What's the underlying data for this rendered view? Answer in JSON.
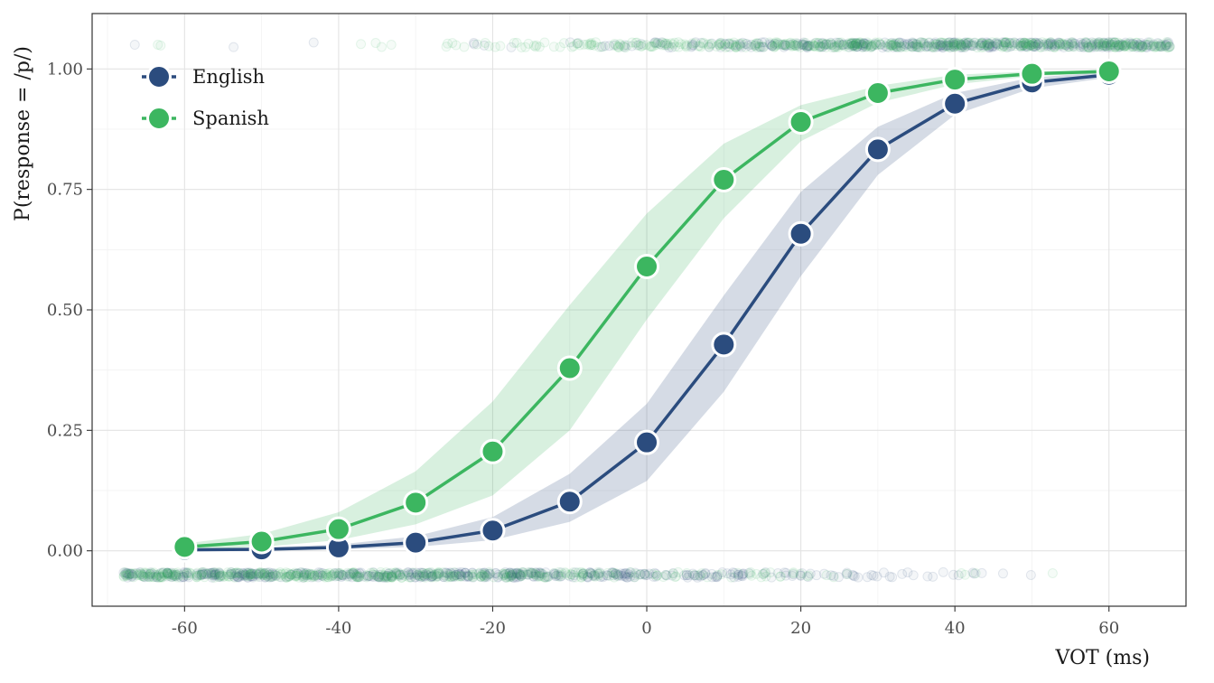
{
  "chart_data": {
    "type": "line",
    "xlabel": "VOT (ms)",
    "ylabel": "P(response = /p/)",
    "xlim": [
      -72,
      70
    ],
    "ylim": [
      -0.115,
      1.115
    ],
    "x_ticks": [
      -60,
      -40,
      -20,
      0,
      20,
      40,
      60
    ],
    "x_tick_labels": [
      "-60",
      "-40",
      "-20",
      "0",
      "20",
      "40",
      "60"
    ],
    "y_ticks": [
      0,
      0.25,
      0.5,
      0.75,
      1.0
    ],
    "y_tick_labels": [
      "0.00",
      "0.25",
      "0.50",
      "0.75",
      "1.00"
    ],
    "grid": true,
    "legend_position": "top-left",
    "x": [
      -60,
      -50,
      -40,
      -30,
      -20,
      -10,
      0,
      10,
      20,
      30,
      40,
      50,
      60
    ],
    "series": [
      {
        "name": "English",
        "color": "#2b4c7e",
        "values": [
          0.002,
          0.003,
          0.007,
          0.017,
          0.042,
          0.102,
          0.225,
          0.428,
          0.658,
          0.833,
          0.928,
          0.972,
          0.988
        ],
        "ci_low": [
          0.0,
          0.001,
          0.003,
          0.008,
          0.022,
          0.06,
          0.145,
          0.33,
          0.57,
          0.78,
          0.905,
          0.96,
          0.982
        ],
        "ci_high": [
          0.005,
          0.007,
          0.013,
          0.03,
          0.07,
          0.16,
          0.305,
          0.53,
          0.745,
          0.88,
          0.95,
          0.982,
          0.994
        ]
      },
      {
        "name": "Spanish",
        "color": "#3cb660",
        "values": [
          0.008,
          0.019,
          0.045,
          0.1,
          0.206,
          0.379,
          0.59,
          0.77,
          0.89,
          0.95,
          0.978,
          0.99,
          0.995
        ],
        "ci_low": [
          0.003,
          0.008,
          0.022,
          0.055,
          0.115,
          0.25,
          0.48,
          0.69,
          0.85,
          0.93,
          0.968,
          0.985,
          0.992
        ],
        "ci_high": [
          0.015,
          0.035,
          0.08,
          0.165,
          0.31,
          0.51,
          0.7,
          0.845,
          0.925,
          0.965,
          0.988,
          0.995,
          0.998
        ]
      }
    ],
    "raw_responses": {
      "y_top": 1.05,
      "y_bottom": -0.05,
      "x_range": [
        -68,
        68
      ]
    }
  }
}
